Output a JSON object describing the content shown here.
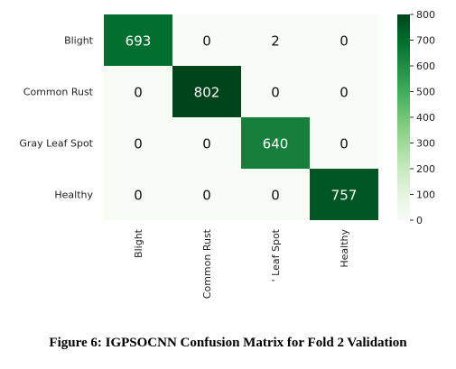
{
  "caption": "Figure 6: IGPSOCNN Confusion Matrix for Fold 2 Validation",
  "chart_data": {
    "type": "heatmap",
    "title": "",
    "xlabel": "",
    "ylabel": "",
    "row_labels": [
      "Blight",
      "Common Rust",
      "Gray Leaf Spot",
      "Healthy"
    ],
    "col_labels": [
      "Blight",
      "Common Rust",
      "' Leaf Spot",
      "Healthy"
    ],
    "values": [
      [
        693,
        0,
        2,
        0
      ],
      [
        0,
        802,
        0,
        0
      ],
      [
        0,
        0,
        640,
        0
      ],
      [
        0,
        0,
        0,
        757
      ]
    ],
    "colorbar": {
      "min": 0,
      "max": 800,
      "ticks": [
        0,
        100,
        200,
        300,
        400,
        500,
        600,
        700,
        800
      ]
    },
    "colors": {
      "low": "#f7fcf5",
      "high": "#00441b",
      "text_dark": "#111111",
      "text_light": "#ffffff"
    }
  }
}
